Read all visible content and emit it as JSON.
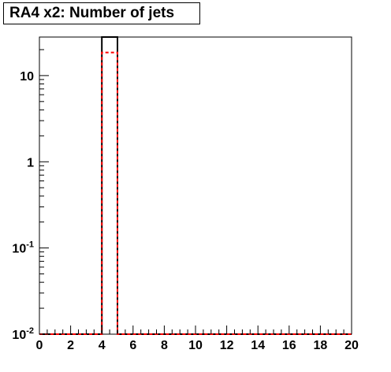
{
  "chart_data": {
    "type": "bar",
    "title": "RA4 x2: Number of jets",
    "xlabel": "",
    "ylabel": "",
    "xlim": [
      0,
      20
    ],
    "ylim": [
      0.01,
      28
    ],
    "y_scale": "log",
    "grid": false,
    "legend": "none",
    "x_ticks": [
      0,
      2,
      4,
      6,
      8,
      10,
      12,
      14,
      16,
      18,
      20
    ],
    "x_tick_labels": [
      "0",
      "2",
      "4",
      "6",
      "8",
      "10",
      "12",
      "14",
      "16",
      "18",
      "20"
    ],
    "y_ticks": [
      {
        "value": 0.01,
        "base": "10",
        "exp": "-2"
      },
      {
        "value": 0.1,
        "base": "10",
        "exp": "-1"
      },
      {
        "value": 1,
        "base": "1",
        "exp": ""
      },
      {
        "value": 10,
        "base": "10",
        "exp": ""
      }
    ],
    "series": [
      {
        "style": "solid",
        "color": "#000000",
        "bin_width": 1,
        "bin_low_edges": [
          4
        ],
        "values": [
          28
        ]
      },
      {
        "style": "dashed",
        "color": "#ff0000",
        "bin_width": 1,
        "bin_low_edges": [
          4
        ],
        "values": [
          18.5
        ]
      }
    ]
  }
}
